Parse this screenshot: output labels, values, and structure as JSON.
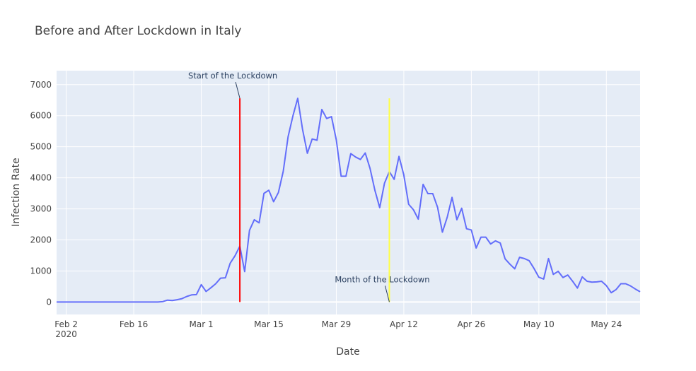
{
  "chart_data": {
    "type": "line",
    "title": "Before and After Lockdown in Italy",
    "xlabel": "Date",
    "ylabel": "Infection Rate",
    "x_start": "2020-01-31",
    "x_end": "2020-05-31",
    "ylim": [
      -400,
      7450
    ],
    "y_ticks": [
      0,
      1000,
      2000,
      3000,
      4000,
      5000,
      6000,
      7000
    ],
    "x_ticks": [
      {
        "date": "2020-02-02",
        "label": "Feb 2",
        "sublabel": "2020"
      },
      {
        "date": "2020-02-16",
        "label": "Feb 16"
      },
      {
        "date": "2020-03-01",
        "label": "Mar 1"
      },
      {
        "date": "2020-03-15",
        "label": "Mar 15"
      },
      {
        "date": "2020-03-29",
        "label": "Mar 29"
      },
      {
        "date": "2020-04-12",
        "label": "Apr 12"
      },
      {
        "date": "2020-04-26",
        "label": "Apr 26"
      },
      {
        "date": "2020-05-10",
        "label": "May 10"
      },
      {
        "date": "2020-05-24",
        "label": "May 24"
      }
    ],
    "grid": true,
    "series": [
      {
        "color": "#636efa",
        "points": [
          [
            "2020-01-31",
            0
          ],
          [
            "2020-02-20",
            0
          ],
          [
            "2020-02-21",
            0
          ],
          [
            "2020-02-22",
            14
          ],
          [
            "2020-02-23",
            62
          ],
          [
            "2020-02-24",
            50
          ],
          [
            "2020-02-25",
            75
          ],
          [
            "2020-02-26",
            110
          ],
          [
            "2020-02-27",
            180
          ],
          [
            "2020-02-28",
            230
          ],
          [
            "2020-02-29",
            240
          ],
          [
            "2020-03-01",
            560
          ],
          [
            "2020-03-02",
            340
          ],
          [
            "2020-03-03",
            460
          ],
          [
            "2020-03-04",
            590
          ],
          [
            "2020-03-05",
            770
          ],
          [
            "2020-03-06",
            780
          ],
          [
            "2020-03-07",
            1250
          ],
          [
            "2020-03-08",
            1490
          ],
          [
            "2020-03-09",
            1800
          ],
          [
            "2020-03-10",
            980
          ],
          [
            "2020-03-11",
            2310
          ],
          [
            "2020-03-12",
            2650
          ],
          [
            "2020-03-13",
            2550
          ],
          [
            "2020-03-14",
            3500
          ],
          [
            "2020-03-15",
            3600
          ],
          [
            "2020-03-16",
            3230
          ],
          [
            "2020-03-17",
            3530
          ],
          [
            "2020-03-18",
            4210
          ],
          [
            "2020-03-19",
            5320
          ],
          [
            "2020-03-20",
            5990
          ],
          [
            "2020-03-21",
            6560
          ],
          [
            "2020-03-22",
            5560
          ],
          [
            "2020-03-23",
            4790
          ],
          [
            "2020-03-24",
            5250
          ],
          [
            "2020-03-25",
            5210
          ],
          [
            "2020-03-26",
            6200
          ],
          [
            "2020-03-27",
            5910
          ],
          [
            "2020-03-28",
            5970
          ],
          [
            "2020-03-29",
            5220
          ],
          [
            "2020-03-30",
            4050
          ],
          [
            "2020-03-31",
            4050
          ],
          [
            "2020-04-01",
            4780
          ],
          [
            "2020-04-02",
            4670
          ],
          [
            "2020-04-03",
            4590
          ],
          [
            "2020-04-04",
            4800
          ],
          [
            "2020-04-05",
            4300
          ],
          [
            "2020-04-06",
            3600
          ],
          [
            "2020-04-07",
            3040
          ],
          [
            "2020-04-08",
            3830
          ],
          [
            "2020-04-09",
            4200
          ],
          [
            "2020-04-10",
            3950
          ],
          [
            "2020-04-11",
            4690
          ],
          [
            "2020-04-12",
            4090
          ],
          [
            "2020-04-13",
            3150
          ],
          [
            "2020-04-14",
            2970
          ],
          [
            "2020-04-15",
            2670
          ],
          [
            "2020-04-16",
            3790
          ],
          [
            "2020-04-17",
            3490
          ],
          [
            "2020-04-18",
            3490
          ],
          [
            "2020-04-19",
            3050
          ],
          [
            "2020-04-20",
            2250
          ],
          [
            "2020-04-21",
            2730
          ],
          [
            "2020-04-22",
            3370
          ],
          [
            "2020-04-23",
            2650
          ],
          [
            "2020-04-24",
            3020
          ],
          [
            "2020-04-25",
            2360
          ],
          [
            "2020-04-26",
            2320
          ],
          [
            "2020-04-27",
            1740
          ],
          [
            "2020-04-28",
            2090
          ],
          [
            "2020-04-29",
            2090
          ],
          [
            "2020-04-30",
            1870
          ],
          [
            "2020-05-01",
            1970
          ],
          [
            "2020-05-02",
            1900
          ],
          [
            "2020-05-03",
            1390
          ],
          [
            "2020-05-04",
            1220
          ],
          [
            "2020-05-05",
            1070
          ],
          [
            "2020-05-06",
            1440
          ],
          [
            "2020-05-07",
            1400
          ],
          [
            "2020-05-08",
            1330
          ],
          [
            "2020-05-09",
            1080
          ],
          [
            "2020-05-10",
            800
          ],
          [
            "2020-05-11",
            740
          ],
          [
            "2020-05-12",
            1400
          ],
          [
            "2020-05-13",
            890
          ],
          [
            "2020-05-14",
            990
          ],
          [
            "2020-05-15",
            790
          ],
          [
            "2020-05-16",
            870
          ],
          [
            "2020-05-17",
            670
          ],
          [
            "2020-05-18",
            450
          ],
          [
            "2020-05-19",
            810
          ],
          [
            "2020-05-20",
            670
          ],
          [
            "2020-05-21",
            640
          ],
          [
            "2020-05-22",
            650
          ],
          [
            "2020-05-23",
            670
          ],
          [
            "2020-05-24",
            530
          ],
          [
            "2020-05-25",
            300
          ],
          [
            "2020-05-26",
            400
          ],
          [
            "2020-05-27",
            590
          ],
          [
            "2020-05-28",
            590
          ],
          [
            "2020-05-29",
            520
          ],
          [
            "2020-05-30",
            420
          ],
          [
            "2020-05-31",
            330
          ]
        ]
      }
    ],
    "vertical_lines": [
      {
        "date": "2020-03-09",
        "y0": 0,
        "y1": 6560,
        "color": "#ff0000"
      },
      {
        "date": "2020-04-09",
        "y0": 0,
        "y1": 6560,
        "color": "#ffff44"
      }
    ],
    "annotations": [
      {
        "text": "Start of the Lockdown",
        "date": "2020-03-09",
        "y": 6560
      },
      {
        "text": "Month of the Lockdown",
        "date": "2020-04-09",
        "y": 0
      }
    ]
  }
}
